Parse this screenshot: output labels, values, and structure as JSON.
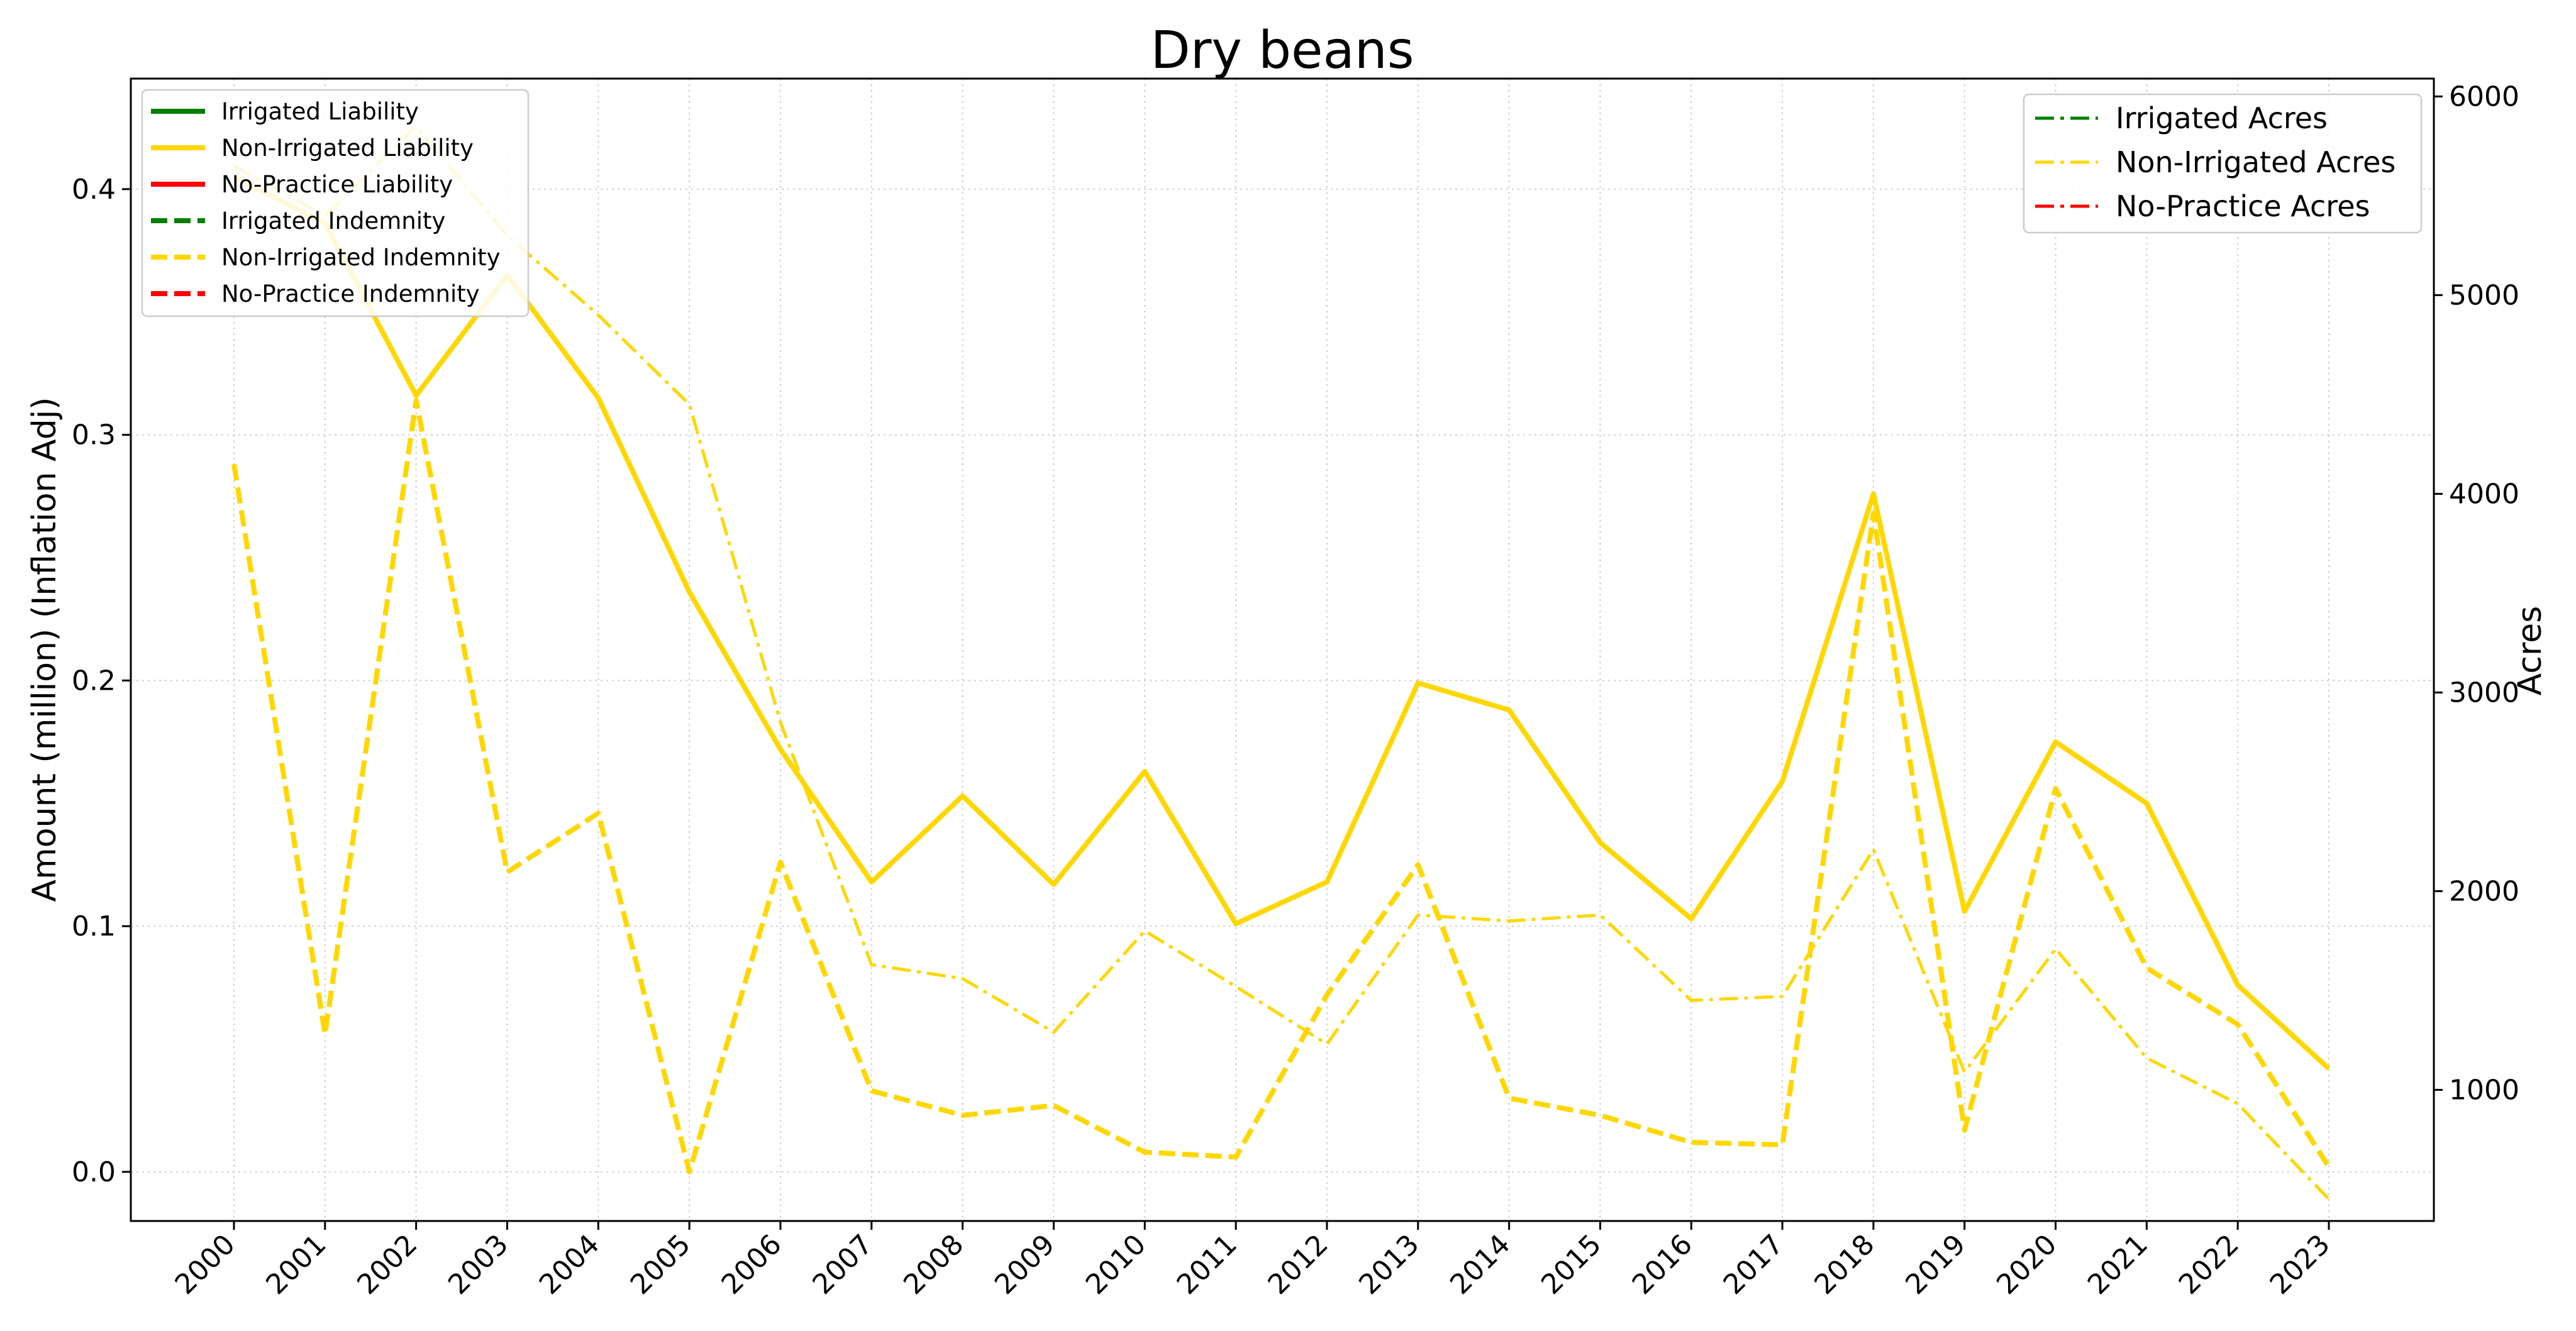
{
  "chart_data": {
    "type": "line",
    "title": "Dry beans",
    "ylabel": "Amount (million) (Inflation Adj)",
    "y2label": "Acres",
    "ylim": [
      -0.02,
      0.445
    ],
    "y2lim": [
      340,
      6090
    ],
    "yticks": [
      0.0,
      0.1,
      0.2,
      0.3,
      0.4
    ],
    "yticklabels": [
      "0.0",
      "0.1",
      "0.2",
      "0.3",
      "0.4"
    ],
    "y2ticks": [
      1000,
      2000,
      3000,
      4000,
      5000,
      6000
    ],
    "y2ticklabels": [
      "1000",
      "2000",
      "3000",
      "4000",
      "5000",
      "6000"
    ],
    "x": [
      "2000",
      "2001",
      "2002",
      "2003",
      "2004",
      "2005",
      "2006",
      "2007",
      "2008",
      "2009",
      "2010",
      "2011",
      "2012",
      "2013",
      "2014",
      "2015",
      "2016",
      "2017",
      "2018",
      "2019",
      "2020",
      "2021",
      "2022",
      "2023"
    ],
    "grid": true,
    "colors": {
      "irrigated": "#008000",
      "non_irrigated": "#FFD700",
      "no_practice": "#FF0000"
    },
    "legend_left": {
      "placement": "top-left",
      "entries": [
        {
          "label": "Irrigated Liability",
          "color": "#008000",
          "style": "solid"
        },
        {
          "label": "Non-Irrigated Liability",
          "color": "#FFD700",
          "style": "solid"
        },
        {
          "label": "No-Practice Liability",
          "color": "#FF0000",
          "style": "solid"
        },
        {
          "label": "Irrigated Indemnity",
          "color": "#008000",
          "style": "dashed"
        },
        {
          "label": "Non-Irrigated Indemnity",
          "color": "#FFD700",
          "style": "dashed"
        },
        {
          "label": "No-Practice Indemnity",
          "color": "#FF0000",
          "style": "dashed"
        }
      ]
    },
    "legend_right": {
      "placement": "top-right",
      "entries": [
        {
          "label": "Irrigated Acres",
          "color": "#008000",
          "style": "dashdot"
        },
        {
          "label": "Non-Irrigated Acres",
          "color": "#FFD700",
          "style": "dashdot"
        },
        {
          "label": "No-Practice Acres",
          "color": "#FF0000",
          "style": "dashdot"
        }
      ]
    },
    "series": [
      {
        "name": "Non-Irrigated Liability",
        "axis": "left",
        "style": "solid",
        "color": "#FFD700",
        "values": [
          0.405,
          0.386,
          0.316,
          0.365,
          0.315,
          0.236,
          0.172,
          0.118,
          0.153,
          0.117,
          0.163,
          0.101,
          0.118,
          0.199,
          0.188,
          0.134,
          0.103,
          0.159,
          0.276,
          0.106,
          0.175,
          0.15,
          0.076,
          0.042
        ]
      },
      {
        "name": "Non-Irrigated Indemnity",
        "axis": "left",
        "style": "dashed",
        "color": "#FFD700",
        "values": [
          0.288,
          0.056,
          0.314,
          0.122,
          0.146,
          0.0,
          0.126,
          0.033,
          0.023,
          0.027,
          0.008,
          0.006,
          0.072,
          0.125,
          0.03,
          0.023,
          0.012,
          0.011,
          0.268,
          0.017,
          0.156,
          0.083,
          0.06,
          0.002
        ]
      },
      {
        "name": "Non-Irrigated Acres",
        "axis": "right",
        "style": "dashdot",
        "color": "#FFD700",
        "values": [
          5650,
          5400,
          5850,
          5300,
          4900,
          4450,
          2850,
          1630,
          1560,
          1290,
          1800,
          1520,
          1230,
          1880,
          1850,
          1880,
          1450,
          1470,
          2210,
          1090,
          1710,
          1160,
          930,
          450
        ]
      }
    ]
  }
}
